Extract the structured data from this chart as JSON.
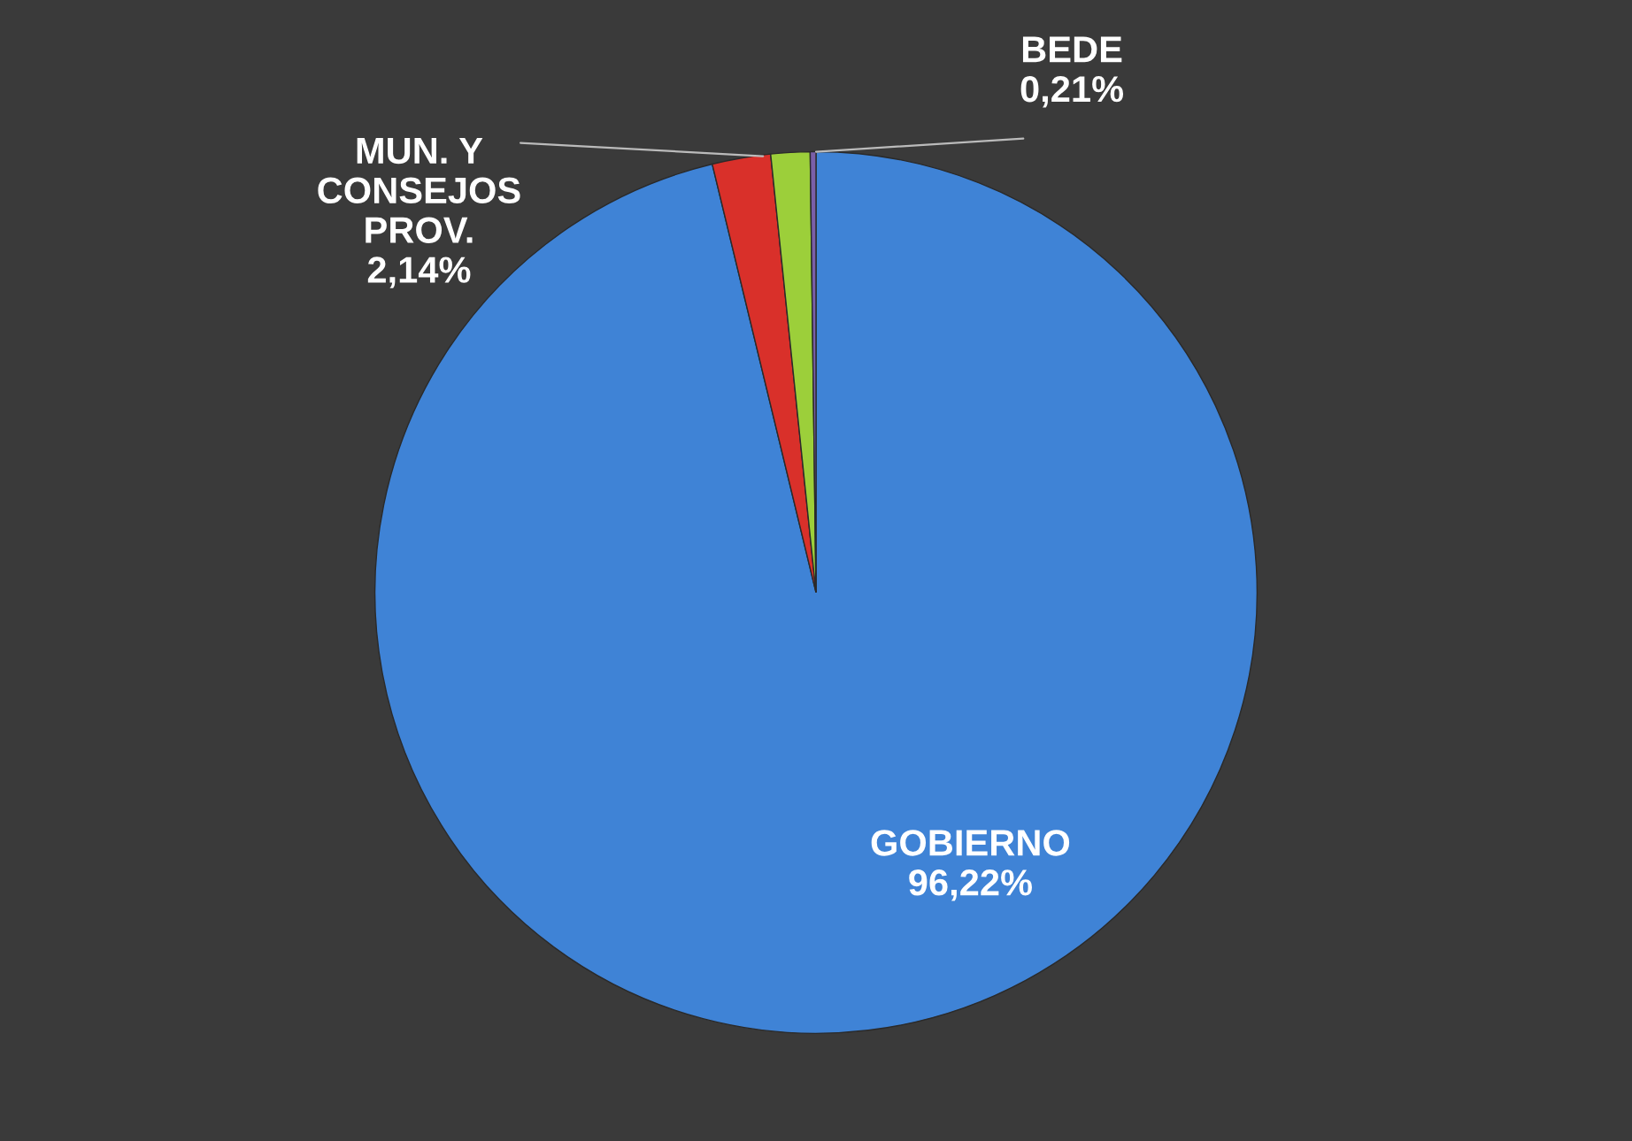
{
  "chart_data": {
    "type": "pie",
    "categories": [
      "GOBIERNO",
      "MUN. Y CONSEJOS PROV.",
      null,
      "BEDE"
    ],
    "values": [
      96.22,
      2.14,
      1.43,
      0.21
    ],
    "value_labels": [
      "96,22%",
      "2,14%",
      null,
      "0,21%"
    ],
    "colors": [
      "#3f83d6",
      "#d9302a",
      "#9ccf3a",
      "#7a5fa8"
    ],
    "legend": false
  }
}
